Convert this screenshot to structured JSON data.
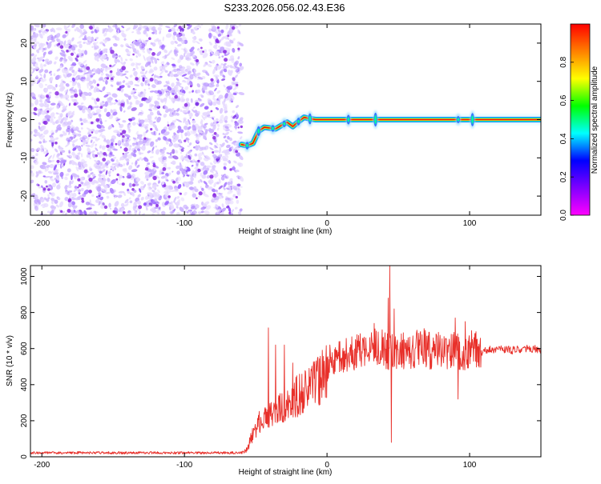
{
  "page": {
    "title": "S233.2026.056.02.43.E36"
  },
  "colors": {
    "noise": "#8a2be2",
    "snr_line": "#e8302a",
    "axis": "#000000"
  },
  "colormap": [
    "#ff00ff",
    "#8000ff",
    "#0000ff",
    "#00ffff",
    "#00ff00",
    "#ffff00",
    "#ff8000",
    "#ff0000"
  ],
  "chart_data": [
    {
      "type": "heatmap",
      "xlabel": "Height of straight line (km)",
      "ylabel": "Frequency (Hz)",
      "xlim": [
        -208,
        150
      ],
      "ylim": [
        -25,
        25
      ],
      "x_ticks": [
        -200,
        -100,
        0,
        100
      ],
      "y_ticks": [
        -20,
        -10,
        0,
        10,
        20
      ],
      "noise_region_x": [
        -208,
        -60
      ],
      "signal_track": {
        "x": [
          -60,
          -56,
          -52,
          -48,
          -44,
          -40,
          -36,
          -32,
          -28,
          -24,
          -20,
          -16,
          -12,
          -8,
          -4,
          0,
          10,
          20,
          40,
          60,
          80,
          100,
          110,
          150
        ],
        "y": [
          -6.5,
          -6.8,
          -6.2,
          -3.0,
          -2.0,
          -2.2,
          -2.4,
          -1.5,
          -0.7,
          -1.8,
          -0.5,
          0.6,
          0.2,
          0.0,
          0.0,
          0.0,
          0.0,
          0.0,
          0.0,
          0.0,
          0.0,
          0.0,
          0.0,
          0.0
        ]
      },
      "colorbar": {
        "label": "Normalized spectral amplitude",
        "range": [
          0,
          1
        ],
        "ticks": [
          "0.0",
          "0.2",
          "0.4",
          "0.6",
          "0.8"
        ],
        "tick_values": [
          0.0,
          0.2,
          0.4,
          0.6,
          0.8
        ]
      }
    },
    {
      "type": "line",
      "xlabel": "Height of straight line (km)",
      "ylabel": "SNR (10 * v/v)",
      "xlim": [
        -208,
        150
      ],
      "ylim": [
        0,
        1060
      ],
      "x_ticks": [
        -200,
        -100,
        0,
        100
      ],
      "y_ticks": [
        0,
        200,
        400,
        600,
        800,
        1000
      ],
      "series": [
        {
          "envelope": {
            "x": [
              -208,
              -60,
              -56,
              -52,
              -48,
              -44,
              -40,
              -36,
              -32,
              -28,
              -24,
              -20,
              -16,
              -12,
              -8,
              -4,
              0,
              4,
              8,
              12,
              16,
              20,
              24,
              28,
              32,
              36,
              40,
              44,
              48,
              52,
              56,
              60,
              64,
              68,
              72,
              76,
              80,
              84,
              88,
              92,
              96,
              100,
              104,
              108,
              112,
              120,
              130,
              140,
              150
            ],
            "y": [
              22,
              22,
              40,
              130,
              190,
              210,
              230,
              240,
              270,
              300,
              320,
              340,
              360,
              380,
              410,
              440,
              470,
              520,
              540,
              560,
              570,
              580,
              590,
              600,
              600,
              610,
              600,
              570,
              590,
              600,
              580,
              590,
              600,
              610,
              590,
              600,
              580,
              590,
              600,
              590,
              580,
              590,
              600,
              580,
              590,
              600,
              590,
              600,
              595
            ]
          },
          "spikes": [
            {
              "x": -41,
              "y": 715
            },
            {
              "x": -36,
              "y": 620
            },
            {
              "x": -30,
              "y": 620
            },
            {
              "x": -24,
              "y": 520
            },
            {
              "x": 2,
              "y": 620
            },
            {
              "x": 20,
              "y": 650
            },
            {
              "x": 33,
              "y": 740
            },
            {
              "x": 43,
              "y": 880
            },
            {
              "x": 44,
              "y": 1060
            },
            {
              "x": 45,
              "y": 80
            },
            {
              "x": 47,
              "y": 820
            },
            {
              "x": 75,
              "y": 640
            },
            {
              "x": 90,
              "y": 770
            },
            {
              "x": 92,
              "y": 320
            },
            {
              "x": 97,
              "y": 750
            },
            {
              "x": 105,
              "y": 650
            }
          ]
        }
      ]
    }
  ]
}
